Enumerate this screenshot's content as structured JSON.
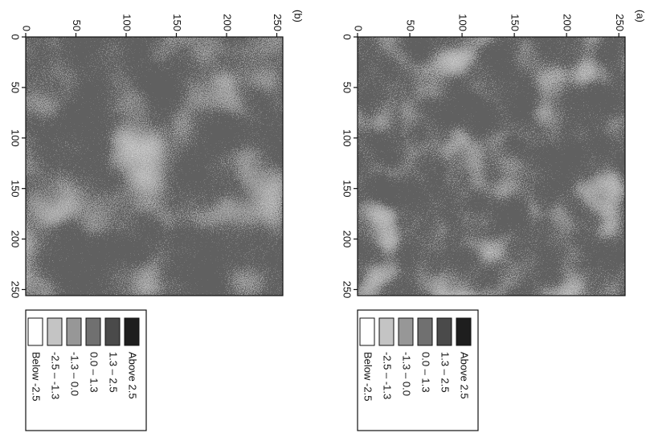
{
  "chart_data": [
    {
      "type": "heatmap",
      "title": "(a)",
      "xlim": [
        0,
        256
      ],
      "ylim": [
        0,
        256
      ],
      "xticks": [
        0,
        50,
        100,
        150,
        200,
        250
      ],
      "yticks": [
        0,
        50,
        100,
        150,
        200,
        250
      ],
      "legend": [
        {
          "label": "Above 2.5",
          "color": "#1e1e1e"
        },
        {
          "label": "1.3 – 2.5",
          "color": "#4a4a4a"
        },
        {
          "label": "0.0 – 1.3",
          "color": "#707070"
        },
        {
          "label": "-1.3 – 0.0",
          "color": "#979797"
        },
        {
          "label": "-2.5 – -1.3",
          "color": "#c4c4c4"
        },
        {
          "label": "Below -2.5",
          "color": "#ffffff"
        }
      ]
    },
    {
      "type": "heatmap",
      "title": "(b)",
      "xlim": [
        0,
        256
      ],
      "ylim": [
        0,
        256
      ],
      "xticks": [
        0,
        50,
        100,
        150,
        200,
        250
      ],
      "yticks": [
        0,
        50,
        100,
        150,
        200,
        250
      ],
      "legend": [
        {
          "label": "Above 2.5",
          "color": "#1e1e1e"
        },
        {
          "label": "1.3 – 2.5",
          "color": "#4a4a4a"
        },
        {
          "label": "0.0 – 1.3",
          "color": "#707070"
        },
        {
          "label": "-1.3 – 0.0",
          "color": "#979797"
        },
        {
          "label": "-2.5 – -1.3",
          "color": "#c4c4c4"
        },
        {
          "label": "Below -2.5",
          "color": "#ffffff"
        }
      ]
    }
  ]
}
